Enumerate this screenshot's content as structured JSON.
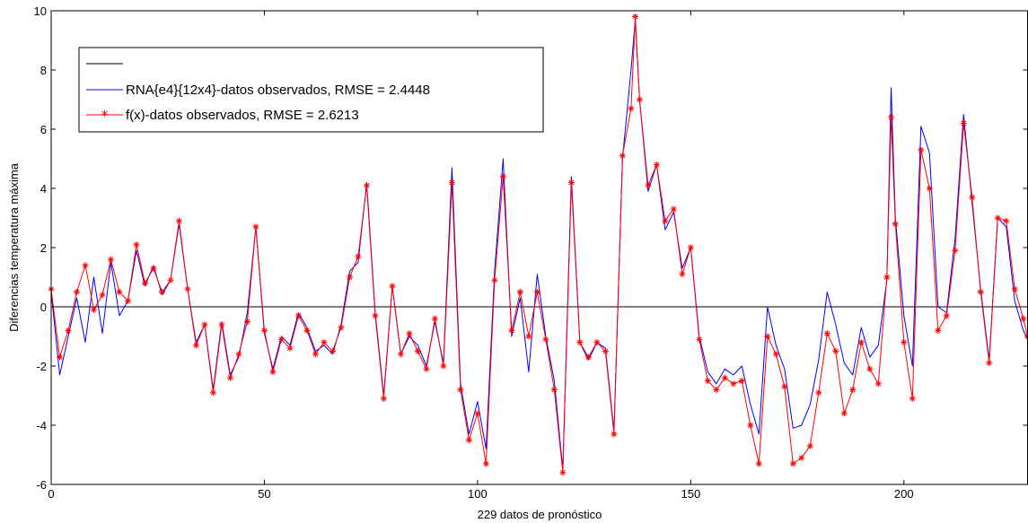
{
  "chart_data": {
    "type": "line",
    "title": "",
    "xlabel": "229 datos de pronóstico",
    "ylabel": "Diferencias temperatura máxima",
    "xlim": [
      0,
      229
    ],
    "ylim": [
      -6,
      10
    ],
    "xticks": [
      0,
      50,
      100,
      150,
      200
    ],
    "yticks": [
      -6,
      -4,
      -2,
      0,
      2,
      4,
      6,
      8,
      10
    ],
    "grid": false,
    "legend_position": "top-left",
    "legend": [
      "",
      "RNA{e4}{12x4}-datos observados, RMSE = 2.4448",
      "f(x)-datos observados, RMSE = 2.6213"
    ],
    "series": [
      {
        "name": "",
        "color": "#000000",
        "marker": "none",
        "x": [
          0,
          229
        ],
        "values": [
          0,
          0
        ]
      },
      {
        "name": "RNA{e4}{12x4}-datos observados, RMSE = 2.4448",
        "color": "#0000ff",
        "marker": "none",
        "x": [
          0,
          2,
          4,
          6,
          8,
          10,
          12,
          14,
          16,
          18,
          20,
          22,
          24,
          26,
          28,
          30,
          32,
          34,
          36,
          38,
          40,
          42,
          44,
          46,
          48,
          50,
          52,
          54,
          56,
          58,
          60,
          62,
          64,
          66,
          68,
          70,
          72,
          74,
          76,
          78,
          80,
          82,
          84,
          86,
          88,
          90,
          92,
          94,
          96,
          98,
          100,
          102,
          104,
          106,
          108,
          110,
          112,
          114,
          116,
          118,
          120,
          122,
          124,
          126,
          128,
          130,
          132,
          134,
          136,
          137,
          138,
          140,
          142,
          144,
          146,
          148,
          150,
          152,
          154,
          156,
          158,
          160,
          162,
          164,
          166,
          168,
          170,
          172,
          174,
          176,
          178,
          180,
          182,
          184,
          186,
          188,
          190,
          192,
          194,
          196,
          197,
          198,
          200,
          202,
          204,
          206,
          208,
          210,
          212,
          214,
          216,
          218,
          220,
          222,
          224,
          226,
          228,
          229
        ],
        "values": [
          0.5,
          -2.3,
          -1.0,
          0.3,
          -1.2,
          1.0,
          -0.9,
          1.5,
          -0.3,
          0.2,
          1.9,
          0.7,
          1.4,
          0.4,
          0.9,
          2.8,
          0.6,
          -1.2,
          -0.6,
          -2.8,
          -0.5,
          -2.3,
          -1.7,
          -0.2,
          2.7,
          -0.9,
          -2.1,
          -1.0,
          -1.3,
          -0.2,
          -0.7,
          -1.5,
          -1.3,
          -1.6,
          -0.6,
          1.2,
          1.5,
          4.2,
          -0.2,
          -3.0,
          0.7,
          -1.6,
          -1.0,
          -1.3,
          -2.0,
          -0.5,
          -1.9,
          4.7,
          -2.6,
          -4.3,
          -3.2,
          -4.8,
          1.2,
          5.0,
          -1.0,
          0.3,
          -2.2,
          1.1,
          -1.0,
          -2.5,
          -5.5,
          4.4,
          -1.2,
          -1.8,
          -1.2,
          -1.4,
          -4.2,
          5.0,
          8.0,
          9.7,
          7.0,
          3.9,
          4.8,
          2.6,
          3.2,
          1.3,
          2.0,
          -1.0,
          -2.2,
          -2.6,
          -2.1,
          -2.3,
          -2.0,
          -3.3,
          -4.3,
          0.0,
          -1.3,
          -2.1,
          -4.1,
          -4.0,
          -3.3,
          -1.8,
          0.5,
          -0.6,
          -1.9,
          -2.3,
          -0.7,
          -1.7,
          -1.3,
          0.9,
          7.4,
          3.0,
          -0.3,
          -2.0,
          6.1,
          5.2,
          0.0,
          -0.2,
          2.3,
          6.5,
          3.5,
          0.6,
          -1.8,
          3.0,
          2.7,
          0.2,
          -0.8,
          -1.1
        ]
      },
      {
        "name": "f(x)-datos observados, RMSE = 2.6213",
        "color": "#ff0000",
        "marker": "*",
        "x": [
          0,
          2,
          4,
          6,
          8,
          10,
          12,
          14,
          16,
          18,
          20,
          22,
          24,
          26,
          28,
          30,
          32,
          34,
          36,
          38,
          40,
          42,
          44,
          46,
          48,
          50,
          52,
          54,
          56,
          58,
          60,
          62,
          64,
          66,
          68,
          70,
          72,
          74,
          76,
          78,
          80,
          82,
          84,
          86,
          88,
          90,
          92,
          94,
          96,
          98,
          100,
          102,
          104,
          106,
          108,
          110,
          112,
          114,
          116,
          118,
          120,
          122,
          124,
          126,
          128,
          130,
          132,
          134,
          136,
          137,
          138,
          140,
          142,
          144,
          146,
          148,
          150,
          152,
          154,
          156,
          158,
          160,
          162,
          164,
          166,
          168,
          170,
          172,
          174,
          176,
          178,
          180,
          182,
          184,
          186,
          188,
          190,
          192,
          194,
          196,
          197,
          198,
          200,
          202,
          204,
          206,
          208,
          210,
          212,
          214,
          216,
          218,
          220,
          222,
          224,
          226,
          228,
          229
        ],
        "values": [
          0.6,
          -1.7,
          -0.8,
          0.5,
          1.4,
          -0.1,
          0.4,
          1.6,
          0.5,
          0.2,
          2.1,
          0.8,
          1.3,
          0.5,
          0.9,
          2.9,
          0.6,
          -1.3,
          -0.6,
          -2.9,
          -0.6,
          -2.4,
          -1.6,
          -0.5,
          2.7,
          -0.8,
          -2.2,
          -1.1,
          -1.4,
          -0.3,
          -0.8,
          -1.6,
          -1.2,
          -1.5,
          -0.7,
          1.0,
          1.7,
          4.1,
          -0.3,
          -3.1,
          0.7,
          -1.6,
          -0.9,
          -1.5,
          -2.1,
          -0.4,
          -2.0,
          4.2,
          -2.8,
          -4.5,
          -3.6,
          -5.3,
          0.9,
          4.4,
          -0.8,
          0.5,
          -1.0,
          0.5,
          -1.1,
          -2.8,
          -5.6,
          4.2,
          -1.2,
          -1.7,
          -1.2,
          -1.5,
          -4.3,
          5.1,
          6.7,
          9.8,
          7.0,
          4.1,
          4.8,
          2.9,
          3.3,
          1.1,
          2.0,
          -1.1,
          -2.5,
          -2.8,
          -2.4,
          -2.6,
          -2.5,
          -4.0,
          -5.3,
          -1.0,
          -1.6,
          -2.7,
          -5.3,
          -5.1,
          -4.7,
          -2.9,
          -0.9,
          -1.5,
          -3.6,
          -2.8,
          -1.2,
          -2.1,
          -2.6,
          1.0,
          6.4,
          2.8,
          -1.2,
          -3.1,
          5.3,
          4.0,
          -0.8,
          -0.3,
          1.9,
          6.2,
          3.7,
          0.5,
          -1.9,
          3.0,
          2.9,
          0.6,
          -0.4,
          -1.0
        ]
      }
    ]
  }
}
